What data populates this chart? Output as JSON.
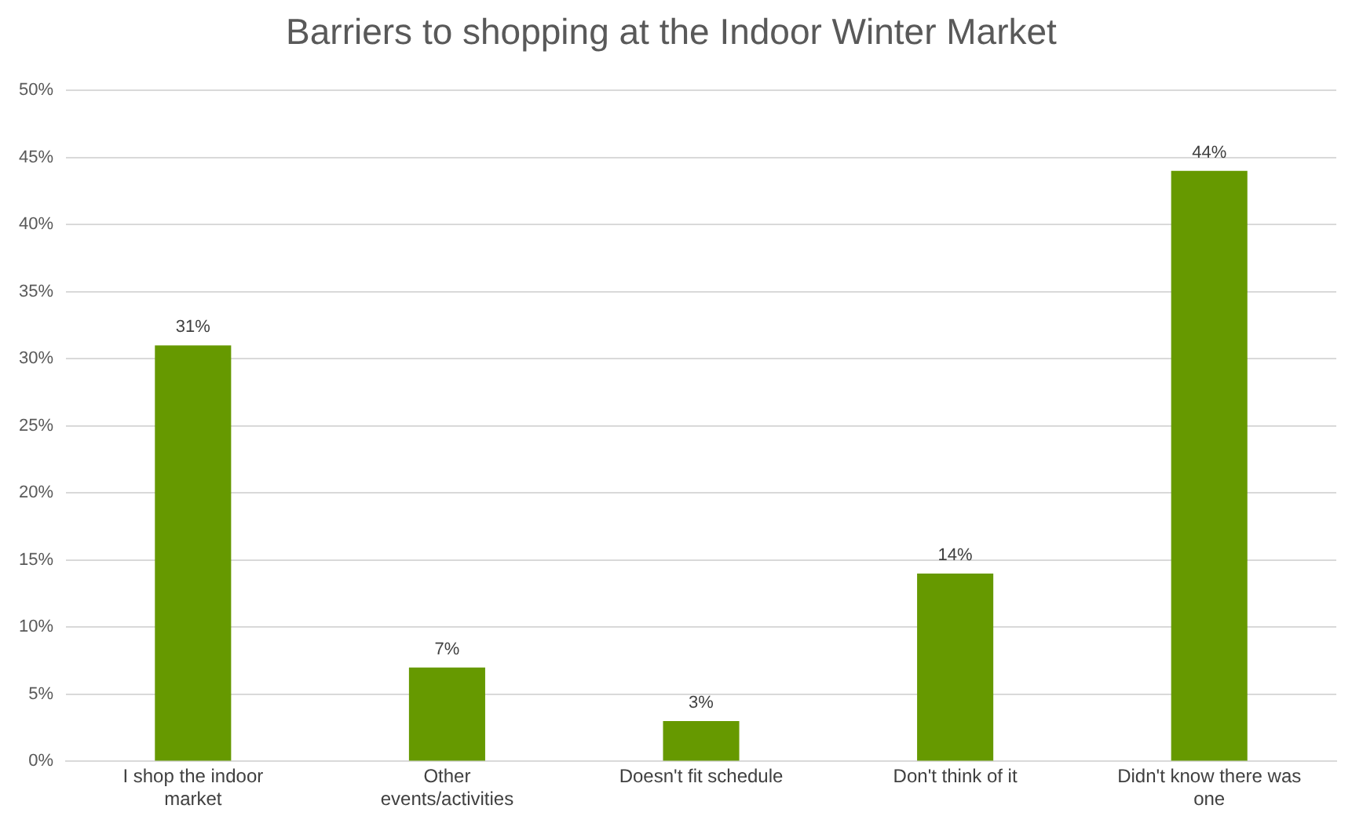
{
  "chart_data": {
    "type": "bar",
    "title": "Barriers to shopping at the Indoor Winter Market",
    "categories": [
      "I shop the indoor market",
      "Other events/activities",
      "Doesn't fit schedule",
      "Don't think of it",
      "Didn't know there was one"
    ],
    "values": [
      31,
      7,
      3,
      14,
      44
    ],
    "value_labels": [
      "31%",
      "7%",
      "3%",
      "14%",
      "44%"
    ],
    "color": "#669900",
    "ylim": [
      0,
      50
    ],
    "yticks": [
      {
        "value": 0,
        "label": "0%"
      },
      {
        "value": 5,
        "label": "5%"
      },
      {
        "value": 10,
        "label": "10%"
      },
      {
        "value": 15,
        "label": "15%"
      },
      {
        "value": 20,
        "label": "20%"
      },
      {
        "value": 25,
        "label": "25%"
      },
      {
        "value": 30,
        "label": "30%"
      },
      {
        "value": 35,
        "label": "35%"
      },
      {
        "value": 40,
        "label": "40%"
      },
      {
        "value": 45,
        "label": "45%"
      },
      {
        "value": 50,
        "label": "50%"
      }
    ],
    "grid": "y",
    "legend": false
  }
}
